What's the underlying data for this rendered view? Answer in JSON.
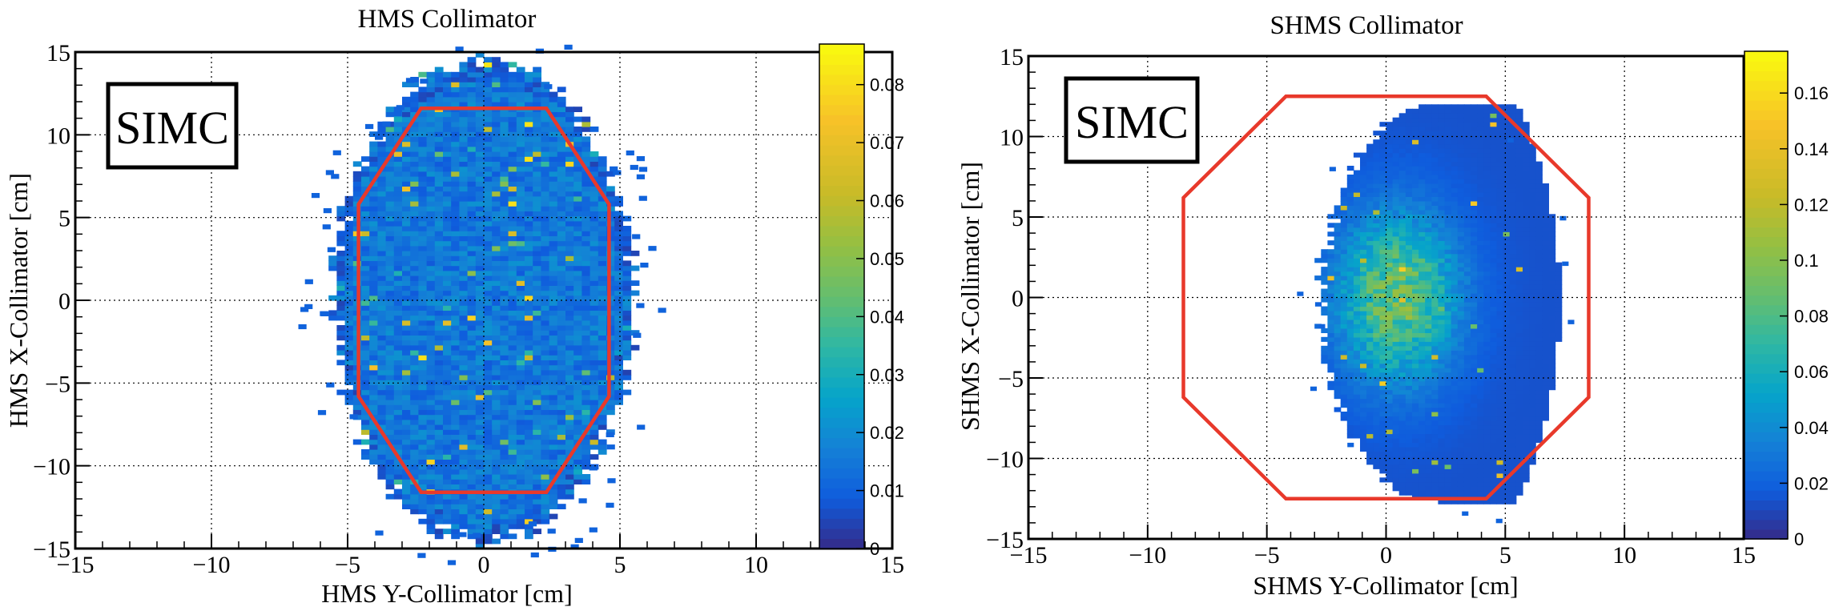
{
  "chart_data": [
    {
      "type": "heatmap",
      "title": "HMS  Collimator",
      "xlabel": "HMS Y-Collimator [cm]",
      "ylabel": "HMS X-Collimator [cm]",
      "xlim": [
        -15,
        15
      ],
      "ylim": [
        -15,
        15
      ],
      "xticks": [
        "−15",
        "−10",
        "−5",
        "0",
        "5",
        "10",
        "15"
      ],
      "yticks": [
        "−15",
        "−10",
        "−5",
        "0",
        "5",
        "10",
        "15"
      ],
      "grid": true,
      "label_box": "SIMC",
      "colorbar": {
        "range": [
          0,
          0.087
        ],
        "ticks": [
          "0",
          "0.01",
          "0.02",
          "0.03",
          "0.04",
          "0.05",
          "0.06",
          "0.07",
          "0.08"
        ]
      },
      "density_region": {
        "x_range": [
          -5.5,
          5.5
        ],
        "y_range": [
          -14.5,
          14.5
        ],
        "shape": "elliptical, uniform blue with scattered green/yellow hot spots",
        "mean_value": 0.015,
        "max_value": 0.087
      },
      "collimator_outline": {
        "color": "#e8392b",
        "vertices": [
          [
            -2.3,
            11.6
          ],
          [
            2.3,
            11.6
          ],
          [
            4.6,
            5.8
          ],
          [
            4.6,
            -5.8
          ],
          [
            2.3,
            -11.6
          ],
          [
            -2.3,
            -11.6
          ],
          [
            -4.6,
            -5.8
          ],
          [
            -4.6,
            5.8
          ]
        ]
      }
    },
    {
      "type": "heatmap",
      "title": "SHMS Collimator",
      "xlabel": "SHMS Y-Collimator [cm]",
      "ylabel": "SHMS X-Collimator [cm]",
      "xlim": [
        -15,
        15
      ],
      "ylim": [
        -15,
        15
      ],
      "xticks": [
        "−15",
        "−10",
        "−5",
        "0",
        "5",
        "10",
        "15"
      ],
      "yticks": [
        "−15",
        "−10",
        "−5",
        "0",
        "5",
        "10",
        "15"
      ],
      "grid": true,
      "label_box": "SIMC",
      "colorbar": {
        "range": [
          0,
          0.175
        ],
        "ticks": [
          "0",
          "0.02",
          "0.04",
          "0.06",
          "0.08",
          "0.1",
          "0.12",
          "0.14",
          "0.16"
        ]
      },
      "density_region": {
        "x_range": [
          -2.7,
          7.3
        ],
        "y_range": [
          -12.7,
          12.1
        ],
        "shape": "D-shaped, denser green core near x=0, y=0",
        "mean_value": 0.03,
        "max_value": 0.175
      },
      "collimator_outline": {
        "color": "#e8392b",
        "vertices": [
          [
            -4.2,
            12.5
          ],
          [
            4.2,
            12.5
          ],
          [
            8.5,
            6.2
          ],
          [
            8.5,
            -6.2
          ],
          [
            4.2,
            -12.5
          ],
          [
            -4.2,
            -12.5
          ],
          [
            -8.5,
            -6.2
          ],
          [
            -8.5,
            6.2
          ]
        ]
      }
    }
  ]
}
